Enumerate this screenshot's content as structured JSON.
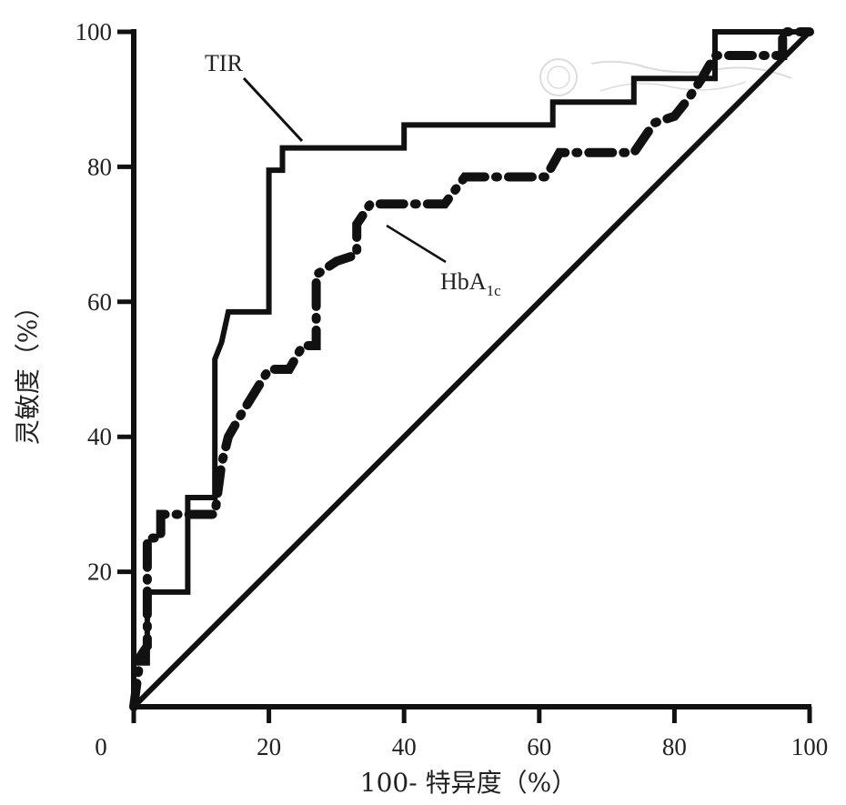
{
  "chart_data": {
    "type": "line",
    "xlabel": "100- 特异度（%）",
    "ylabel": "灵敏度（%）",
    "xlim": [
      0,
      100
    ],
    "ylim": [
      0,
      100
    ],
    "x_ticks": [
      "0",
      "20",
      "40",
      "60",
      "80",
      "100"
    ],
    "y_ticks": [
      "20",
      "40",
      "60",
      "80",
      "100"
    ],
    "x_tick_values": [
      0,
      20,
      40,
      60,
      80,
      100
    ],
    "y_tick_values": [
      20,
      40,
      60,
      80,
      100
    ],
    "grid": false,
    "series": [
      {
        "name": "TIR",
        "label_main": "TIR",
        "style": "solid",
        "points": [
          [
            0,
            0
          ],
          [
            0,
            6.5
          ],
          [
            2,
            6.5
          ],
          [
            2,
            17
          ],
          [
            8,
            17
          ],
          [
            8,
            31
          ],
          [
            12,
            31
          ],
          [
            12,
            51.5
          ],
          [
            13,
            54
          ],
          [
            14,
            58.5
          ],
          [
            20,
            58.5
          ],
          [
            20,
            79.5
          ],
          [
            22,
            79.5
          ],
          [
            22,
            82.8
          ],
          [
            40,
            82.8
          ],
          [
            40,
            86.2
          ],
          [
            62,
            86.2
          ],
          [
            62,
            89.6
          ],
          [
            74,
            89.6
          ],
          [
            74,
            93.1
          ],
          [
            86,
            93.1
          ],
          [
            86,
            100
          ],
          [
            100,
            100
          ]
        ]
      },
      {
        "name": "HbA1c",
        "label_main": "HbA",
        "label_sub": "1c",
        "style": "dash-dot",
        "points": [
          [
            0,
            0
          ],
          [
            1,
            7.5
          ],
          [
            2,
            9
          ],
          [
            2,
            25
          ],
          [
            4,
            25
          ],
          [
            4,
            28.5
          ],
          [
            12,
            28.5
          ],
          [
            13,
            36
          ],
          [
            14,
            40
          ],
          [
            16,
            43.5
          ],
          [
            20,
            50
          ],
          [
            23,
            50
          ],
          [
            25,
            53.5
          ],
          [
            27,
            53.5
          ],
          [
            27,
            64
          ],
          [
            30,
            66
          ],
          [
            33,
            67
          ],
          [
            33,
            71.5
          ],
          [
            35,
            74.5
          ],
          [
            46,
            74.5
          ],
          [
            49,
            78.5
          ],
          [
            61,
            78.5
          ],
          [
            63,
            82.1
          ],
          [
            74,
            82.1
          ],
          [
            77,
            86.5
          ],
          [
            80,
            87.5
          ],
          [
            82,
            90
          ],
          [
            84,
            93
          ],
          [
            86,
            96.5
          ],
          [
            96,
            96.5
          ],
          [
            96,
            100
          ],
          [
            100,
            100
          ]
        ]
      },
      {
        "name": "",
        "style": "solid",
        "points": [
          [
            0,
            0
          ],
          [
            100,
            100
          ]
        ]
      }
    ]
  }
}
